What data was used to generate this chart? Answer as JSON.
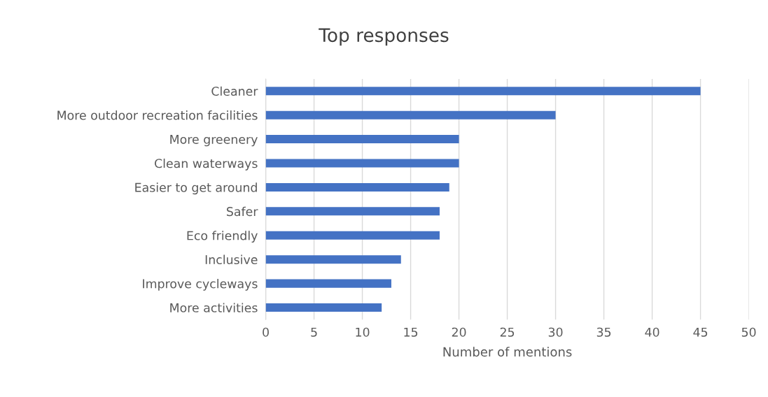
{
  "chart_data": {
    "type": "bar",
    "orientation": "horizontal",
    "title": "Top responses",
    "xlabel": "Number of mentions",
    "categories": [
      "Cleaner",
      "More outdoor recreation facilities",
      "More greenery",
      "Clean waterways",
      "Easier to get around",
      "Safer",
      "Eco friendly",
      "Inclusive",
      "Improve cycleways",
      "More activities"
    ],
    "values": [
      45,
      30,
      20,
      20,
      19,
      18,
      18,
      14,
      13,
      12
    ],
    "color": "#4472c4",
    "xlim": [
      0,
      50
    ],
    "xticks": [
      0,
      5,
      10,
      15,
      20,
      25,
      30,
      35,
      40,
      45,
      50
    ],
    "grid": "x",
    "legend": false
  }
}
